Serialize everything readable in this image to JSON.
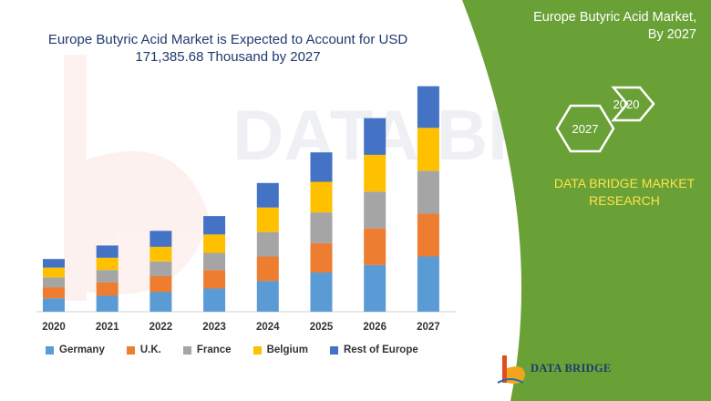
{
  "chart_data": {
    "type": "bar",
    "stacked": true,
    "title": "Europe Butyric Acid Market is Expected to Account for USD 171,385.68 Thousand by 2027",
    "categories": [
      "2020",
      "2021",
      "2022",
      "2023",
      "2024",
      "2025",
      "2026",
      "2027"
    ],
    "series": [
      {
        "name": "Germany",
        "color": "#5b9bd5",
        "values": [
          11,
          13,
          16,
          19,
          25,
          32,
          38,
          45
        ]
      },
      {
        "name": "U.K.",
        "color": "#ed7d31",
        "values": [
          9,
          11,
          13,
          15,
          20,
          24,
          30,
          35
        ]
      },
      {
        "name": "France",
        "color": "#a5a5a5",
        "values": [
          8,
          10,
          12,
          14,
          20,
          25,
          30,
          35
        ]
      },
      {
        "name": "Belgium",
        "color": "#ffc000",
        "values": [
          8,
          10,
          12,
          15,
          20,
          25,
          30,
          35
        ]
      },
      {
        "name": "Rest of Europe",
        "color": "#4472c4",
        "values": [
          7,
          10,
          13,
          15,
          20,
          24,
          30,
          34
        ]
      }
    ],
    "ylim": [
      0,
      180
    ],
    "grid": false,
    "legend": "bottom"
  },
  "panel": {
    "title_line1": "Europe Butyric Acid Market,",
    "title_line2": "By 2027",
    "hex_start": "2020",
    "hex_end": "2027",
    "brand_line1": "DATA BRIDGE MARKET",
    "brand_line2": "RESEARCH",
    "green": "#6aa136",
    "accent_yellow": "#ffe14d"
  },
  "logo": {
    "text": "DATA BRIDGE",
    "watermark_text": "DATA BRIDGE"
  }
}
